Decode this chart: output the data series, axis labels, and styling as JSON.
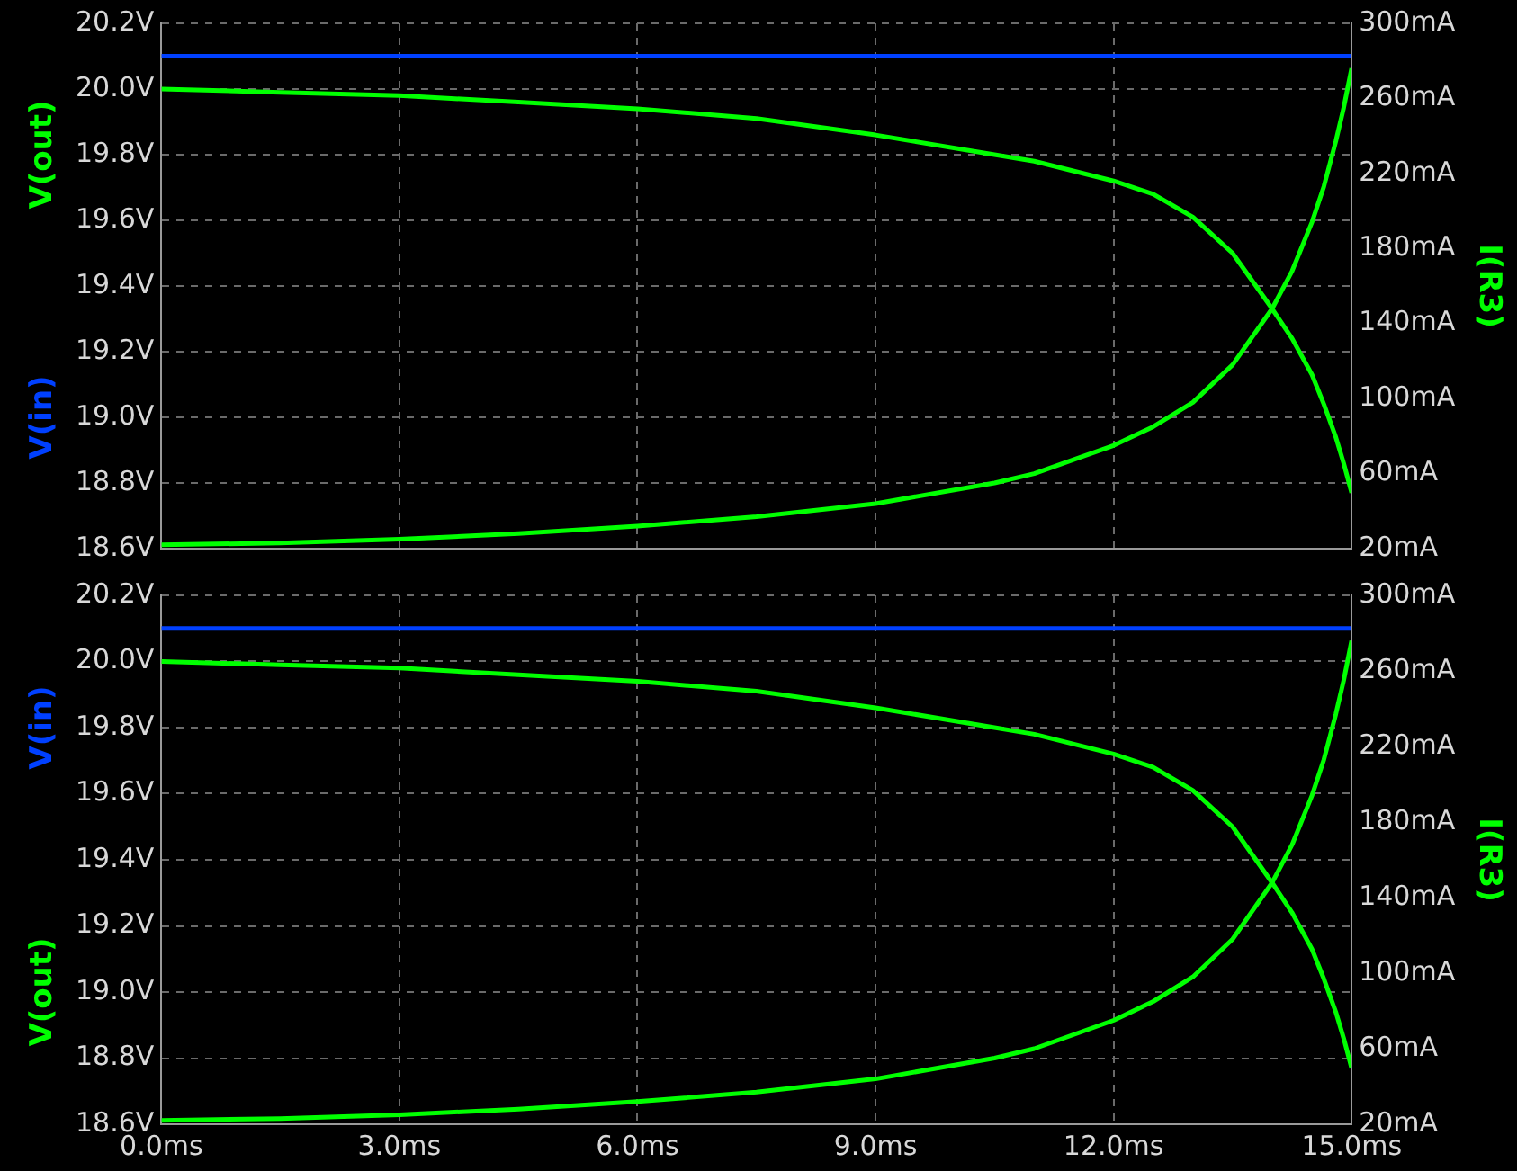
{
  "chart_data": [
    {
      "type": "line",
      "tick_labels": "y",
      "y2label": "I(R3)",
      "grid": true,
      "marker": "none",
      "line_style": "solid",
      "x": [
        0,
        1.5,
        3,
        4.5,
        6,
        7.5,
        9,
        10.5,
        11,
        12,
        12.5,
        13,
        13.5,
        14,
        14.25,
        14.5,
        14.65,
        14.8,
        14.9,
        15
      ],
      "xlim": [
        0,
        15
      ],
      "xticks": [
        {
          "value": 0,
          "label": null
        },
        {
          "value": 3,
          "label": null
        },
        {
          "value": 6,
          "label": null
        },
        {
          "value": 9,
          "label": null
        },
        {
          "value": 12,
          "label": null
        },
        {
          "value": 15,
          "label": null
        }
      ],
      "ylim": [
        18.6,
        20.2
      ],
      "yticks": [
        {
          "value": 18.6,
          "label": "18.6V"
        },
        {
          "value": 18.8,
          "label": "18.8V"
        },
        {
          "value": 19.0,
          "label": "19.0V"
        },
        {
          "value": 19.2,
          "label": "19.2V"
        },
        {
          "value": 19.4,
          "label": "19.4V"
        },
        {
          "value": 19.6,
          "label": "19.6V"
        },
        {
          "value": 19.8,
          "label": "19.8V"
        },
        {
          "value": 20.0,
          "label": "20.0V"
        },
        {
          "value": 20.2,
          "label": "20.2V"
        }
      ],
      "y2lim": [
        20,
        300
      ],
      "y2ticks": [
        {
          "value": 20,
          "label": "20mA"
        },
        {
          "value": 60,
          "label": "60mA"
        },
        {
          "value": 100,
          "label": "100mA"
        },
        {
          "value": 140,
          "label": "140mA"
        },
        {
          "value": 180,
          "label": "180mA"
        },
        {
          "value": 220,
          "label": "220mA"
        },
        {
          "value": 260,
          "label": "260mA"
        },
        {
          "value": 300,
          "label": "300mA"
        }
      ],
      "series": [
        {
          "name": "V(in)",
          "color": "#0040ff",
          "values": [
            20.1,
            20.1,
            20.1,
            20.1,
            20.1,
            20.1,
            20.1,
            20.1,
            20.1,
            20.1,
            20.1,
            20.1,
            20.1,
            20.1,
            20.1,
            20.1,
            20.1,
            20.1,
            20.1,
            20.1
          ]
        },
        {
          "name": "V(out)",
          "color": "#00ff00",
          "values": [
            20.0,
            19.99,
            19.98,
            19.96,
            19.94,
            19.91,
            19.86,
            19.8,
            19.78,
            19.72,
            19.68,
            19.61,
            19.5,
            19.33,
            19.24,
            19.13,
            19.04,
            18.94,
            18.86,
            18.77
          ]
        },
        {
          "color": "#00ff00",
          "axis": "y2",
          "values": [
            22,
            23,
            25,
            28,
            32,
            37,
            44,
            55,
            60,
            75,
            85,
            98,
            118,
            148,
            168,
            194,
            213,
            237,
            255,
            276
          ]
        }
      ]
    },
    {
      "type": "line",
      "y2label": "I(R3)",
      "grid": true,
      "marker": "none",
      "line_style": "solid",
      "x": [
        0,
        1.5,
        3,
        4.5,
        6,
        7.5,
        9,
        10.5,
        11,
        12,
        12.5,
        13,
        13.5,
        14,
        14.25,
        14.5,
        14.65,
        14.8,
        14.9,
        15
      ],
      "xlim": [
        0,
        15
      ],
      "xticks": [
        {
          "value": 0,
          "label": "0.0ms"
        },
        {
          "value": 3,
          "label": "3.0ms"
        },
        {
          "value": 6,
          "label": "6.0ms"
        },
        {
          "value": 9,
          "label": "9.0ms"
        },
        {
          "value": 12,
          "label": "12.0ms"
        },
        {
          "value": 15,
          "label": "15.0ms"
        }
      ],
      "ylim": [
        18.6,
        20.2
      ],
      "yticks": [
        {
          "value": 18.6,
          "label": "18.6V"
        },
        {
          "value": 18.8,
          "label": "18.8V"
        },
        {
          "value": 19.0,
          "label": "19.0V"
        },
        {
          "value": 19.2,
          "label": "19.2V"
        },
        {
          "value": 19.4,
          "label": "19.4V"
        },
        {
          "value": 19.6,
          "label": "19.6V"
        },
        {
          "value": 19.8,
          "label": "19.8V"
        },
        {
          "value": 20.0,
          "label": "20.0V"
        },
        {
          "value": 20.2,
          "label": "20.2V"
        }
      ],
      "y2lim": [
        20,
        300
      ],
      "y2ticks": [
        {
          "value": 20,
          "label": "20mA"
        },
        {
          "value": 60,
          "label": "60mA"
        },
        {
          "value": 100,
          "label": "100mA"
        },
        {
          "value": 140,
          "label": "140mA"
        },
        {
          "value": 180,
          "label": "180mA"
        },
        {
          "value": 220,
          "label": "220mA"
        },
        {
          "value": 260,
          "label": "260mA"
        },
        {
          "value": 300,
          "label": "300mA"
        }
      ],
      "series": [
        {
          "name": "V(out)",
          "color": "#00ff00",
          "values": [
            20.0,
            19.99,
            19.98,
            19.96,
            19.94,
            19.91,
            19.86,
            19.8,
            19.78,
            19.72,
            19.68,
            19.61,
            19.5,
            19.33,
            19.24,
            19.13,
            19.04,
            18.94,
            18.86,
            18.77
          ]
        },
        {
          "name": "V(in)",
          "color": "#0040ff",
          "values": [
            20.1,
            20.1,
            20.1,
            20.1,
            20.1,
            20.1,
            20.1,
            20.1,
            20.1,
            20.1,
            20.1,
            20.1,
            20.1,
            20.1,
            20.1,
            20.1,
            20.1,
            20.1,
            20.1,
            20.1
          ]
        },
        {
          "color": "#00ff00",
          "axis": "y2",
          "values": [
            22,
            23,
            25,
            28,
            32,
            37,
            44,
            55,
            60,
            75,
            85,
            98,
            118,
            148,
            168,
            194,
            213,
            237,
            255,
            276
          ]
        }
      ]
    }
  ]
}
